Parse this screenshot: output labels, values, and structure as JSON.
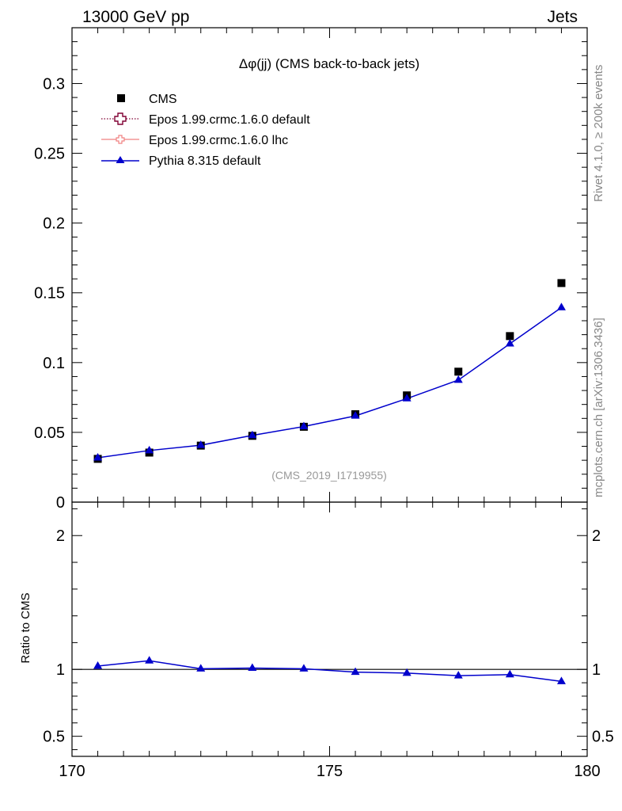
{
  "header": {
    "left": "13000 GeV pp",
    "right": "Jets"
  },
  "side_labels": {
    "rivet": "Rivet 4.1.0, ≥ 200k events",
    "mcplots": "mcplots.cern.ch [arXiv:1306.3436]"
  },
  "colors": {
    "cms": "#000000",
    "epos_default": "#800033",
    "epos_lhc": "#f08080",
    "pythia": "#0000cc"
  },
  "chart_data": [
    {
      "type": "line",
      "title": "Δφ(jj) (CMS back-to-back jets)",
      "watermark": "(CMS_2019_I1719955)",
      "xlabel": "",
      "ylabel": "",
      "xlim": [
        170,
        180
      ],
      "ylim": [
        0,
        0.34
      ],
      "x_ticks": [
        170,
        175,
        180
      ],
      "y_ticks": [
        0,
        0.05,
        0.1,
        0.15,
        0.2,
        0.25,
        0.3
      ],
      "y_tick_labels": [
        "0",
        "0.05",
        "0.1",
        "0.15",
        "0.2",
        "0.25",
        "0.3"
      ],
      "legend": [
        {
          "name": "CMS",
          "marker": "square",
          "style": "markers"
        },
        {
          "name": "Epos 1.99.crmc.1.6.0 default",
          "marker": "open-cross",
          "style": "dotted"
        },
        {
          "name": "Epos 1.99.crmc.1.6.0 lhc",
          "marker": "small-cross",
          "style": "solid"
        },
        {
          "name": "Pythia 8.315 default",
          "marker": "triangle",
          "style": "solid"
        }
      ],
      "x": [
        170.5,
        171.5,
        172.5,
        173.5,
        174.5,
        175.5,
        176.5,
        177.5,
        178.5,
        179.5
      ],
      "series": [
        {
          "name": "CMS",
          "values": [
            0.031,
            0.0355,
            0.0405,
            0.0475,
            0.054,
            0.063,
            0.0765,
            0.0935,
            0.119,
            0.157
          ]
        },
        {
          "name": "Pythia 8.315 default",
          "values": [
            0.0318,
            0.037,
            0.0408,
            0.0478,
            0.0542,
            0.0618,
            0.0742,
            0.0875,
            0.1135,
            0.1395
          ]
        }
      ]
    },
    {
      "type": "line",
      "title": "",
      "xlabel": "",
      "ylabel": "Ratio to CMS",
      "xlim": [
        170,
        180
      ],
      "ylim": [
        0.35,
        2.25
      ],
      "x_ticks": [
        170,
        175,
        180
      ],
      "x_tick_labels": [
        "170",
        "175",
        "180"
      ],
      "y_ticks": [
        0.5,
        1,
        2
      ],
      "y_tick_labels": [
        "0.5",
        "1",
        "2"
      ],
      "reference_line": 1,
      "x": [
        170.5,
        171.5,
        172.5,
        173.5,
        174.5,
        175.5,
        176.5,
        177.5,
        178.5,
        179.5
      ],
      "series": [
        {
          "name": "Pythia 8.315 default",
          "values": [
            1.025,
            1.065,
            1.005,
            1.01,
            1.005,
            0.98,
            0.972,
            0.953,
            0.961,
            0.91
          ]
        }
      ]
    }
  ]
}
